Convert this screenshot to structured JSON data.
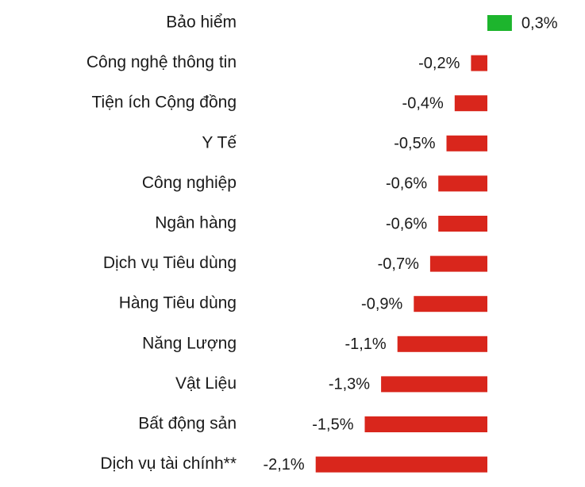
{
  "chart_data": {
    "type": "bar",
    "orientation": "horizontal",
    "categories": [
      "Bảo hiểm",
      "Công nghệ thông tin",
      "Tiện ích Cộng đồng",
      "Y Tế",
      "Công nghiệp",
      "Ngân hàng",
      "Dịch vụ Tiêu dùng",
      "Hàng Tiêu dùng",
      "Năng Lượng",
      "Vật Liệu",
      "Bất động sản",
      "Dịch vụ tài chính**"
    ],
    "values": [
      0.3,
      -0.2,
      -0.4,
      -0.5,
      -0.6,
      -0.6,
      -0.7,
      -0.9,
      -1.1,
      -1.3,
      -1.5,
      -2.1
    ],
    "value_labels": [
      "0,3%",
      "-0,2%",
      "-0,4%",
      "-0,5%",
      "-0,6%",
      "-0,6%",
      "-0,7%",
      "-0,9%",
      "-1,1%",
      "-1,3%",
      "-1,5%",
      "-2,1%"
    ],
    "title": "",
    "xlabel": "",
    "ylabel": "",
    "grid": false,
    "legend": "none",
    "colors": {
      "positive": "#1db52d",
      "negative": "#d9261c"
    }
  }
}
